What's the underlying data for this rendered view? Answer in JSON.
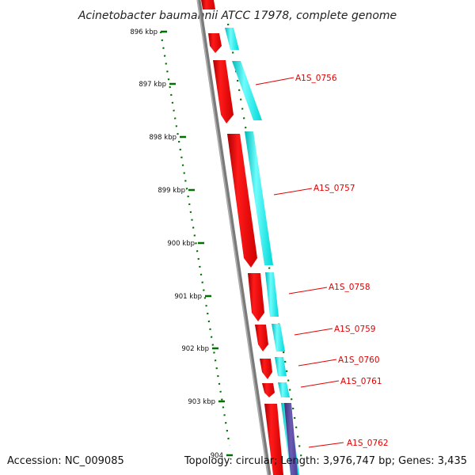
{
  "title": "Acinetobacter baumannii ATCC 17978, complete genome",
  "footer": {
    "accession": "Accession: NC_009085",
    "summary": "Topology: circular; Length: 3,976,747 bp; Genes: 3,435"
  },
  "ticks": [
    "896 kbp",
    "897 kbp",
    "898 kbp",
    "899 kbp",
    "900 kbp",
    "901 kbp",
    "902 kbp",
    "903 kbp",
    "904"
  ],
  "genes": [
    {
      "label": "A1S_0756"
    },
    {
      "label": "A1S_0757"
    },
    {
      "label": "A1S_0758"
    },
    {
      "label": "A1S_0759"
    },
    {
      "label": "A1S_0760"
    },
    {
      "label": "A1S_0761"
    },
    {
      "label": "A1S_0762"
    }
  ],
  "colors": {
    "cds": "#ff0000",
    "cds_dark": "#c80000",
    "cyan": "#00ffff",
    "cyan_dark": "#00c8c8",
    "purple": "#55449a",
    "backbone": "#808080",
    "tick": "#007000",
    "label": "#e00000"
  }
}
